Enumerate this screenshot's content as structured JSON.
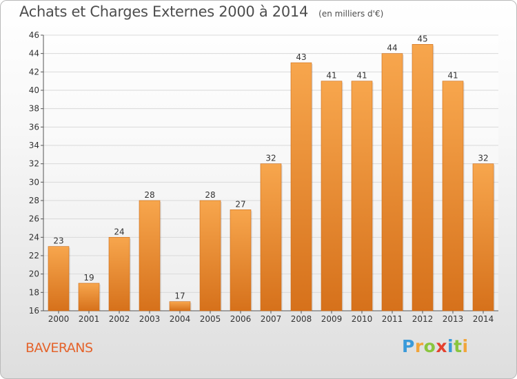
{
  "header": {
    "title": "Achats et Charges Externes 2000 à 2014",
    "unit": "(en milliers d'€)"
  },
  "footer": {
    "town": "BAVERANS",
    "logo_text": "Proxiti",
    "logo_letters": [
      {
        "ch": "P",
        "color": "#3a9ad9"
      },
      {
        "ch": "r",
        "color": "#f2a53a"
      },
      {
        "ch": "o",
        "color": "#8ac53e"
      },
      {
        "ch": "x",
        "color": "#e4412f"
      },
      {
        "ch": "i",
        "color": "#3a9ad9"
      },
      {
        "ch": "t",
        "color": "#8ac53e"
      },
      {
        "ch": "i",
        "color": "#f2a53a"
      }
    ]
  },
  "colors": {
    "bar_top": "#f7a64d",
    "bar_bottom": "#d6711b",
    "grid": "#d9d9d9",
    "axis_text": "#333333",
    "title_text": "#4d4d4d",
    "town_text": "#e4632b"
  },
  "chart_data": {
    "type": "bar",
    "title": "Achats et Charges Externes 2000 à 2014",
    "subtitle": "(en milliers d'€)",
    "xlabel": "",
    "ylabel": "",
    "categories": [
      "2000",
      "2001",
      "2002",
      "2003",
      "2004",
      "2005",
      "2006",
      "2007",
      "2008",
      "2009",
      "2010",
      "2011",
      "2012",
      "2013",
      "2014"
    ],
    "values": [
      23,
      19,
      24,
      28,
      17,
      28,
      27,
      32,
      43,
      41,
      41,
      44,
      45,
      41,
      32
    ],
    "ylim": [
      16,
      46
    ],
    "yticks": [
      16,
      18,
      20,
      22,
      24,
      26,
      28,
      30,
      32,
      34,
      36,
      38,
      40,
      42,
      44,
      46
    ],
    "grid": true,
    "legend": "none",
    "data_labels": true
  }
}
